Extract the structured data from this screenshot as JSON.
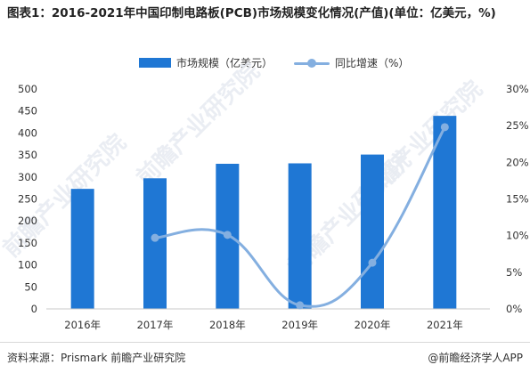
{
  "title": "图表1：2016-2021年中国印制电路板(PCB)市场规模变化情况(产值)(单位：亿美元，%)",
  "legend": {
    "bar_label": "市场规模（亿美元）",
    "line_label": "同比增速（%）"
  },
  "footer": {
    "source": "资料来源：Prismark 前瞻产业研究院",
    "brand": "@前瞻经济学人APP"
  },
  "watermark": "前瞻产业研究院",
  "colors": {
    "bar": "#1f77d4",
    "line": "#84afe0",
    "axis": "#c8c8c8"
  },
  "chart_data": {
    "type": "bar",
    "categories": [
      "2016年",
      "2017年",
      "2018年",
      "2019年",
      "2020年",
      "2021年"
    ],
    "series": [
      {
        "name": "市场规模（亿美元）",
        "type": "bar",
        "axis": "left",
        "values": [
          273,
          297,
          330,
          331,
          351,
          439
        ]
      },
      {
        "name": "同比增速（%）",
        "type": "line",
        "axis": "right",
        "values": [
          null,
          9.7,
          10.1,
          0.5,
          6.3,
          24.8
        ]
      }
    ],
    "y_left": {
      "ylim": [
        0,
        500
      ],
      "ticks": [
        "0",
        "50",
        "100",
        "150",
        "200",
        "250",
        "300",
        "350",
        "400",
        "450",
        "500"
      ]
    },
    "y_right": {
      "ylim": [
        0,
        30
      ],
      "ticks": [
        "0%",
        "5%",
        "10%",
        "15%",
        "20%",
        "25%",
        "30%"
      ]
    },
    "grid": false,
    "legend_position": "top-center"
  }
}
